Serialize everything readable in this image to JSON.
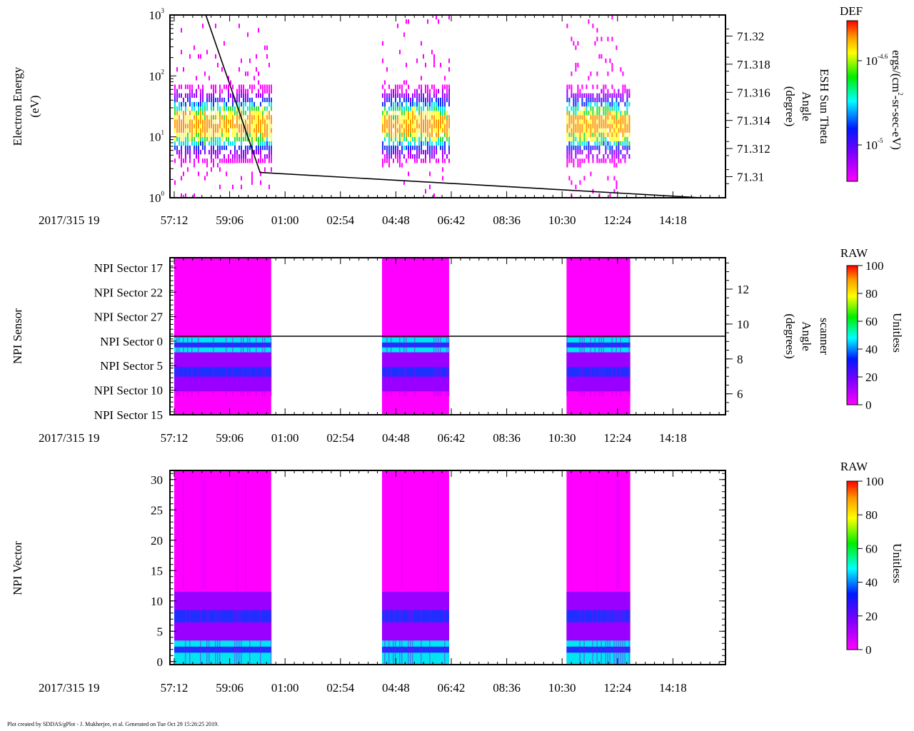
{
  "date_label": "2017/315 19",
  "footer_text": "Plot created by SDDAS/gPlot - J. Mukherjee, et al.  Generated on Tue Oct 29 15:26:25 2019.",
  "time_axis": {
    "tick_labels": [
      "57:12",
      "59:06",
      "01:00",
      "02:54",
      "04:48",
      "06:42",
      "08:36",
      "10:30",
      "12:24",
      "14:18"
    ]
  },
  "data_blocks": [
    {
      "start_index": 0.0,
      "end_index": 1.75
    },
    {
      "start_index": 3.75,
      "end_index": 4.96
    },
    {
      "start_index": 7.08,
      "end_index": 8.23
    }
  ],
  "colors": {
    "magenta": "#ff00ff",
    "purple": "#9900ff",
    "blue": "#1f2fff",
    "cyan": "#00e5f0",
    "green": "#33dd33",
    "yellow": "#ffff33",
    "orange": "#ff9900",
    "red": "#ff0000"
  },
  "chart_data": [
    {
      "type": "heatmap",
      "title": "",
      "ylabel": "Electron Energy (eV)",
      "ylabel_lines": [
        "Electron Energy",
        "(eV)"
      ],
      "yscale": "log",
      "ylim": [
        1,
        1000
      ],
      "y_ticks": [
        {
          "base": "10",
          "exp": "0",
          "value": 1
        },
        {
          "base": "10",
          "exp": "1",
          "value": 10
        },
        {
          "base": "10",
          "exp": "2",
          "value": 100
        },
        {
          "base": "10",
          "exp": "3",
          "value": 1000
        }
      ],
      "right_axis": {
        "label_lines": [
          "ESH Sun Theta",
          "Angle",
          "(degree)"
        ],
        "ylim": [
          71.3085,
          71.3215
        ],
        "ticks": [
          "71.31",
          "71.312",
          "71.314",
          "71.316",
          "71.318",
          "71.32"
        ],
        "series": {
          "name": "ESH Sun Theta",
          "x": [
            0.57,
            1.55,
            9.5
          ],
          "y": [
            71.3216,
            71.3103,
            71.3085
          ]
        }
      },
      "colorbar": {
        "title": "DEF",
        "unit": "ergs/(cm²-sr-sec-eV)",
        "unit_parts": {
          "a": "ergs/(cm",
          "sup": "2",
          "b": "-sr-sec-eV)"
        },
        "ticks": [
          {
            "base": "10",
            "exp": "-4.6"
          },
          {
            "base": "10",
            "exp": "-5"
          }
        ]
      }
    },
    {
      "type": "heatmap",
      "ylabel": "NPI Sensor",
      "y_categories": [
        "NPI Sector 17",
        "NPI Sector 22",
        "NPI Sector 27",
        "NPI Sector 0",
        "NPI Sector 5",
        "NPI Sector 10",
        "NPI Sector 15"
      ],
      "right_axis": {
        "label_lines": [
          "scanner",
          "Angle",
          "(degrees)"
        ],
        "ylim": [
          4.8,
          13.8
        ],
        "ticks": [
          "6",
          "8",
          "10",
          "12"
        ],
        "series": {
          "name": "scanner Angle",
          "x": [
            0,
            10
          ],
          "y": [
            9.3,
            9.3
          ]
        }
      },
      "colorbar": {
        "title": "RAW",
        "unit": "Unitless",
        "range": [
          0,
          100
        ],
        "ticks": [
          "0",
          "20",
          "40",
          "60",
          "80",
          "100"
        ]
      }
    },
    {
      "type": "heatmap",
      "ylabel": "NPI Vector",
      "ylim": [
        -0.5,
        31.5
      ],
      "y_ticks": [
        "0",
        "5",
        "10",
        "15",
        "20",
        "25",
        "30"
      ],
      "colorbar": {
        "title": "RAW",
        "unit": "Unitless",
        "range": [
          0,
          100
        ],
        "ticks": [
          "0",
          "20",
          "40",
          "60",
          "80",
          "100"
        ]
      }
    }
  ]
}
